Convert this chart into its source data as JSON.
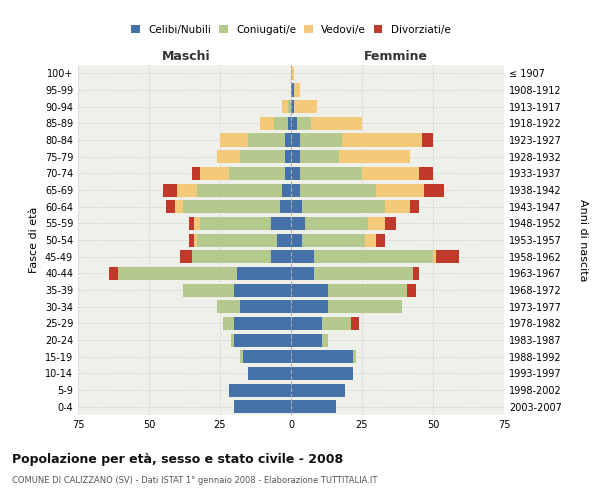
{
  "age_groups": [
    "0-4",
    "5-9",
    "10-14",
    "15-19",
    "20-24",
    "25-29",
    "30-34",
    "35-39",
    "40-44",
    "45-49",
    "50-54",
    "55-59",
    "60-64",
    "65-69",
    "70-74",
    "75-79",
    "80-84",
    "85-89",
    "90-94",
    "95-99",
    "100+"
  ],
  "birth_years": [
    "2003-2007",
    "1998-2002",
    "1993-1997",
    "1988-1992",
    "1983-1987",
    "1978-1982",
    "1973-1977",
    "1968-1972",
    "1963-1967",
    "1958-1962",
    "1953-1957",
    "1948-1952",
    "1943-1947",
    "1938-1942",
    "1933-1937",
    "1928-1932",
    "1923-1927",
    "1918-1922",
    "1913-1917",
    "1908-1912",
    "≤ 1907"
  ],
  "colors": {
    "celibi": "#4472a8",
    "coniugati": "#b5c98e",
    "vedovi": "#f5c97a",
    "divorziati": "#c0392b"
  },
  "males": {
    "celibi": [
      20,
      22,
      15,
      17,
      20,
      20,
      18,
      20,
      19,
      7,
      5,
      7,
      4,
      3,
      2,
      2,
      2,
      1,
      0,
      0,
      0
    ],
    "coniugati": [
      0,
      0,
      0,
      1,
      1,
      4,
      8,
      18,
      42,
      28,
      28,
      25,
      34,
      30,
      20,
      16,
      13,
      5,
      1,
      0,
      0
    ],
    "vedovi": [
      0,
      0,
      0,
      0,
      0,
      0,
      0,
      0,
      0,
      0,
      1,
      2,
      3,
      7,
      10,
      8,
      10,
      5,
      2,
      0,
      0
    ],
    "divorziati": [
      0,
      0,
      0,
      0,
      0,
      0,
      0,
      0,
      3,
      4,
      2,
      2,
      3,
      5,
      3,
      0,
      0,
      0,
      0,
      0,
      0
    ]
  },
  "females": {
    "celibi": [
      16,
      19,
      22,
      22,
      11,
      11,
      13,
      13,
      8,
      8,
      4,
      5,
      4,
      3,
      3,
      3,
      3,
      2,
      1,
      1,
      0
    ],
    "coniugati": [
      0,
      0,
      0,
      1,
      2,
      10,
      26,
      28,
      35,
      42,
      22,
      22,
      29,
      27,
      22,
      14,
      15,
      5,
      0,
      0,
      0
    ],
    "vedovi": [
      0,
      0,
      0,
      0,
      0,
      0,
      0,
      0,
      0,
      1,
      4,
      6,
      9,
      17,
      20,
      25,
      28,
      18,
      8,
      2,
      1
    ],
    "divorziati": [
      0,
      0,
      0,
      0,
      0,
      3,
      0,
      3,
      2,
      8,
      3,
      4,
      3,
      7,
      5,
      0,
      4,
      0,
      0,
      0,
      0
    ]
  },
  "title": "Popolazione per età, sesso e stato civile - 2008",
  "subtitle": "COMUNE DI CALIZZANO (SV) - Dati ISTAT 1° gennaio 2008 - Elaborazione TUTTITALIA.IT",
  "label_maschi": "Maschi",
  "label_femmine": "Femmine",
  "ylabel_left": "Fasce di età",
  "ylabel_right": "Anni di nascita",
  "xlim": 75,
  "bg_color": "#ffffff",
  "plot_bg": "#f0f0eb",
  "grid_color": "#cccccc",
  "legend_labels": [
    "Celibi/Nubili",
    "Coniugati/e",
    "Vedovi/e",
    "Divorziati/e"
  ]
}
